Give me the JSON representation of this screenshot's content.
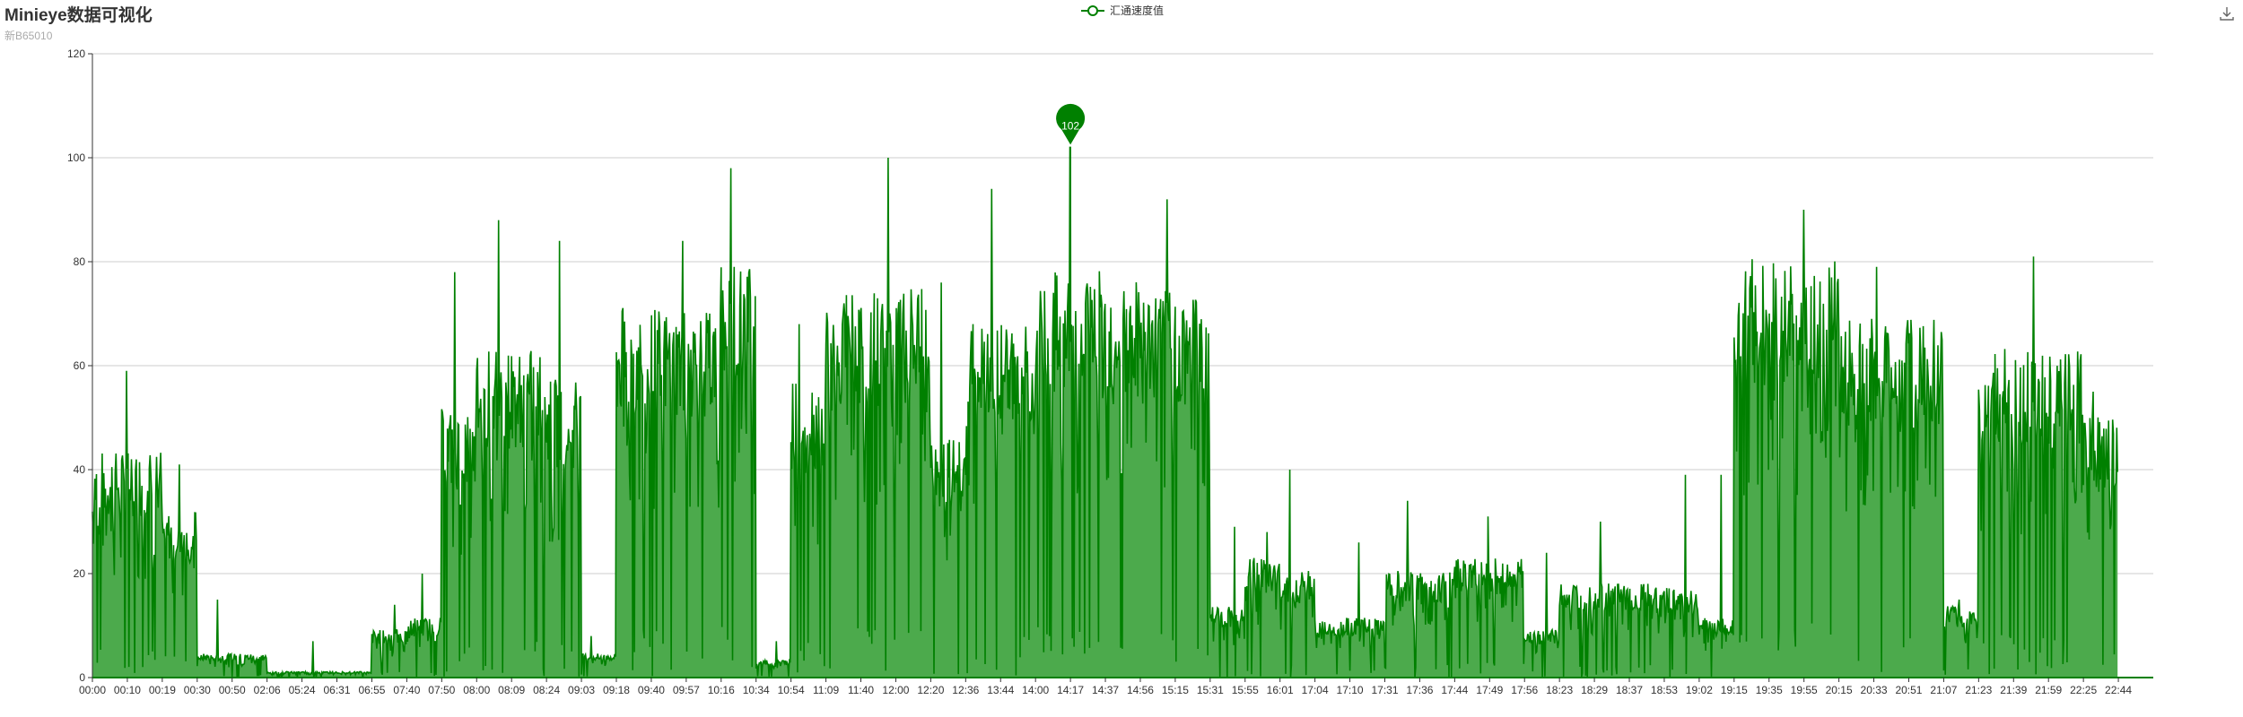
{
  "title": "Minieye数据可视化",
  "subtitle": "新B65010",
  "legend": {
    "label": "汇通速度值"
  },
  "toolbox": {
    "icon": "download-icon"
  },
  "colors": {
    "line": "#008000",
    "area": "#4caa4c",
    "axis": "#333333",
    "grid": "#cccccc",
    "pin": "#008000"
  },
  "chart_data": {
    "type": "area",
    "title": "Minieye数据可视化",
    "subtitle": "新B65010",
    "series_name": "汇通速度值",
    "ylim": [
      0,
      120
    ],
    "yticks": [
      0,
      20,
      40,
      60,
      80,
      100,
      120
    ],
    "grid": true,
    "legend_position": "top-center",
    "xticks": [
      "00:00",
      "00:10",
      "00:19",
      "00:30",
      "00:50",
      "02:06",
      "05:24",
      "06:31",
      "06:55",
      "07:40",
      "07:50",
      "08:00",
      "08:09",
      "08:24",
      "09:03",
      "09:18",
      "09:40",
      "09:57",
      "10:16",
      "10:34",
      "10:54",
      "11:09",
      "11:40",
      "12:00",
      "12:20",
      "12:36",
      "13:44",
      "14:00",
      "14:17",
      "14:37",
      "14:56",
      "15:15",
      "15:31",
      "15:55",
      "16:01",
      "17:04",
      "17:10",
      "17:31",
      "17:36",
      "17:44",
      "17:49",
      "17:56",
      "18:23",
      "18:29",
      "18:37",
      "18:53",
      "19:02",
      "19:15",
      "19:35",
      "19:55",
      "20:15",
      "20:33",
      "20:51",
      "21:07",
      "21:23",
      "21:39",
      "21:59",
      "22:25",
      "22:44"
    ],
    "segments": [
      {
        "from": "00:00",
        "to": "00:19",
        "typical": 38,
        "peak": 59
      },
      {
        "from": "00:19",
        "to": "00:30",
        "typical": 28,
        "peak": 41
      },
      {
        "from": "00:30",
        "to": "02:06",
        "typical": 4,
        "peak": 15
      },
      {
        "from": "02:06",
        "to": "06:55",
        "typical": 1,
        "peak": 7
      },
      {
        "from": "06:55",
        "to": "07:40",
        "typical": 8,
        "peak": 14
      },
      {
        "from": "07:40",
        "to": "07:50",
        "typical": 10,
        "peak": 20
      },
      {
        "from": "07:50",
        "to": "08:00",
        "typical": 45,
        "peak": 78
      },
      {
        "from": "08:00",
        "to": "08:24",
        "typical": 55,
        "peak": 88
      },
      {
        "from": "08:24",
        "to": "09:03",
        "typical": 50,
        "peak": 84
      },
      {
        "from": "09:03",
        "to": "09:18",
        "typical": 4,
        "peak": 8
      },
      {
        "from": "09:18",
        "to": "10:16",
        "typical": 62,
        "peak": 84
      },
      {
        "from": "10:16",
        "to": "10:34",
        "typical": 70,
        "peak": 98
      },
      {
        "from": "10:34",
        "to": "10:54",
        "typical": 3,
        "peak": 7
      },
      {
        "from": "10:54",
        "to": "11:09",
        "typical": 50,
        "peak": 68
      },
      {
        "from": "11:09",
        "to": "12:20",
        "typical": 65,
        "peak": 100
      },
      {
        "from": "12:20",
        "to": "12:36",
        "typical": 40,
        "peak": 76
      },
      {
        "from": "12:36",
        "to": "14:00",
        "typical": 60,
        "peak": 94
      },
      {
        "from": "14:00",
        "to": "14:56",
        "typical": 68,
        "peak": 102
      },
      {
        "from": "14:56",
        "to": "15:31",
        "typical": 65,
        "peak": 92
      },
      {
        "from": "15:31",
        "to": "15:55",
        "typical": 12,
        "peak": 29
      },
      {
        "from": "15:55",
        "to": "16:01",
        "typical": 20,
        "peak": 28
      },
      {
        "from": "16:01",
        "to": "17:04",
        "typical": 18,
        "peak": 40
      },
      {
        "from": "17:04",
        "to": "17:31",
        "typical": 10,
        "peak": 26
      },
      {
        "from": "17:31",
        "to": "17:44",
        "typical": 18,
        "peak": 34
      },
      {
        "from": "17:44",
        "to": "17:56",
        "typical": 20,
        "peak": 31
      },
      {
        "from": "17:56",
        "to": "18:23",
        "typical": 8,
        "peak": 24
      },
      {
        "from": "18:23",
        "to": "18:53",
        "typical": 16,
        "peak": 30
      },
      {
        "from": "18:53",
        "to": "19:02",
        "typical": 15,
        "peak": 39
      },
      {
        "from": "19:02",
        "to": "19:15",
        "typical": 10,
        "peak": 39
      },
      {
        "from": "19:15",
        "to": "20:15",
        "typical": 70,
        "peak": 90
      },
      {
        "from": "20:15",
        "to": "21:07",
        "typical": 60,
        "peak": 79
      },
      {
        "from": "21:07",
        "to": "21:23",
        "typical": 12,
        "peak": 15
      },
      {
        "from": "21:23",
        "to": "22:25",
        "typical": 55,
        "peak": 81
      },
      {
        "from": "22:25",
        "to": "22:44",
        "typical": 45,
        "peak": 55
      }
    ],
    "max_marker": {
      "time": "14:17",
      "value": 102
    }
  }
}
